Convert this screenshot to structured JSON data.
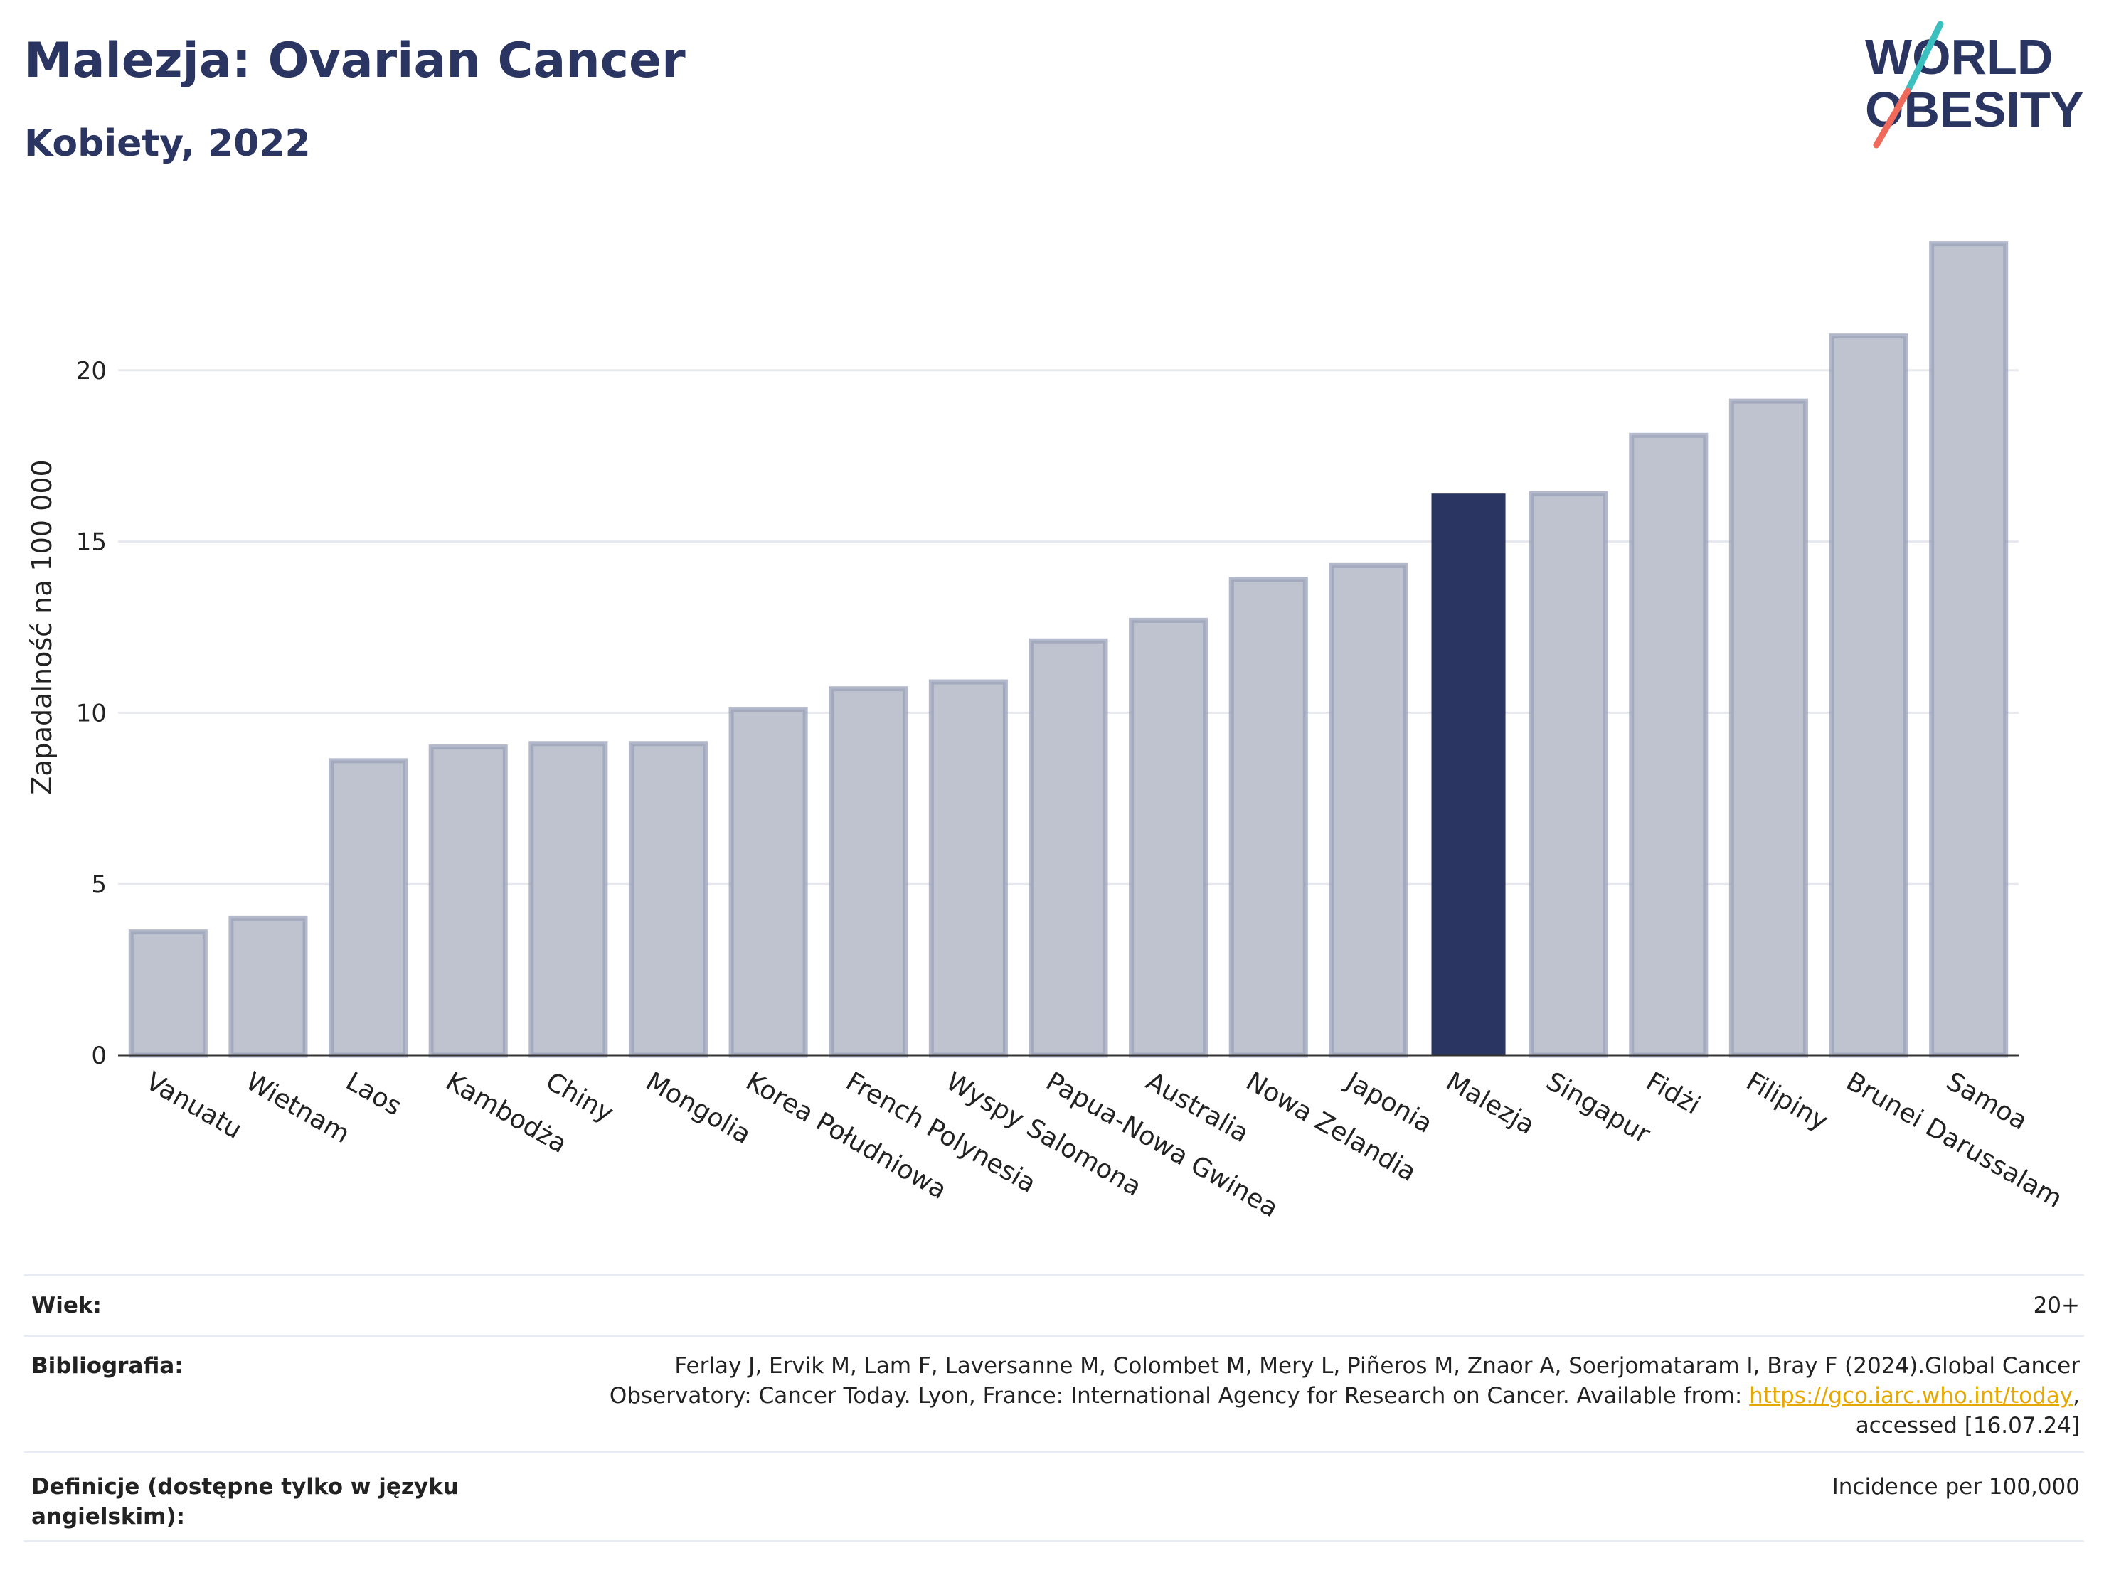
{
  "header": {
    "title": "Malezja: Ovarian Cancer",
    "subtitle": "Kobiety, 2022"
  },
  "logo": {
    "line1": "WORLD",
    "line2": "OBESITY"
  },
  "colors": {
    "bar": "#bfc3d0",
    "bar_stroke": "#9aa1b8",
    "highlight": "#2a3561",
    "grid": "#e6e8ee",
    "axis": "#333333",
    "logo_teal": "#3bbfbf",
    "logo_coral": "#ef6a5a"
  },
  "chart_data": {
    "type": "bar",
    "ylabel": "Zapadalność na 100 000",
    "ylim": [
      0,
      25
    ],
    "yticks": [
      0,
      5,
      10,
      15,
      20
    ],
    "grid": true,
    "highlight": "Malezja",
    "categories": [
      "Vanuatu",
      "Wietnam",
      "Laos",
      "Kambodża",
      "Chiny",
      "Mongolia",
      "Korea Południowa",
      "French Polynesia",
      "Wyspy Salomona",
      "Papua-Nowa Gwinea",
      "Australia",
      "Nowa Zelandia",
      "Japonia",
      "Malezja",
      "Singapur",
      "Fidżi",
      "Filipiny",
      "Brunei Darussalam",
      "Samoa"
    ],
    "values": [
      3.6,
      4.0,
      8.6,
      9.0,
      9.1,
      9.1,
      10.1,
      10.7,
      10.9,
      12.1,
      12.7,
      13.9,
      14.3,
      16.4,
      16.4,
      18.1,
      19.1,
      21.0,
      23.7
    ]
  },
  "info": {
    "age_label": "Wiek:",
    "age_value": "20+",
    "bib_label": "Bibliografia:",
    "bib_line1": "Ferlay J, Ervik M, Lam F, Laversanne M, Colombet M, Mery L, Piñeros M, Znaor A, Soerjomataram I, Bray F (2024).Global Cancer",
    "bib_line2": "Observatory: Cancer Today. Lyon, France: International Agency for Research on Cancer. Available from: ",
    "bib_link": "https://gco.iarc.who.int/today",
    "bib_line2_end": ",",
    "bib_line3": "accessed [16.07.24]",
    "def_label": "Definicje (dostępne tylko w języku angielskim):",
    "def_value": "Incidence per 100,000"
  }
}
